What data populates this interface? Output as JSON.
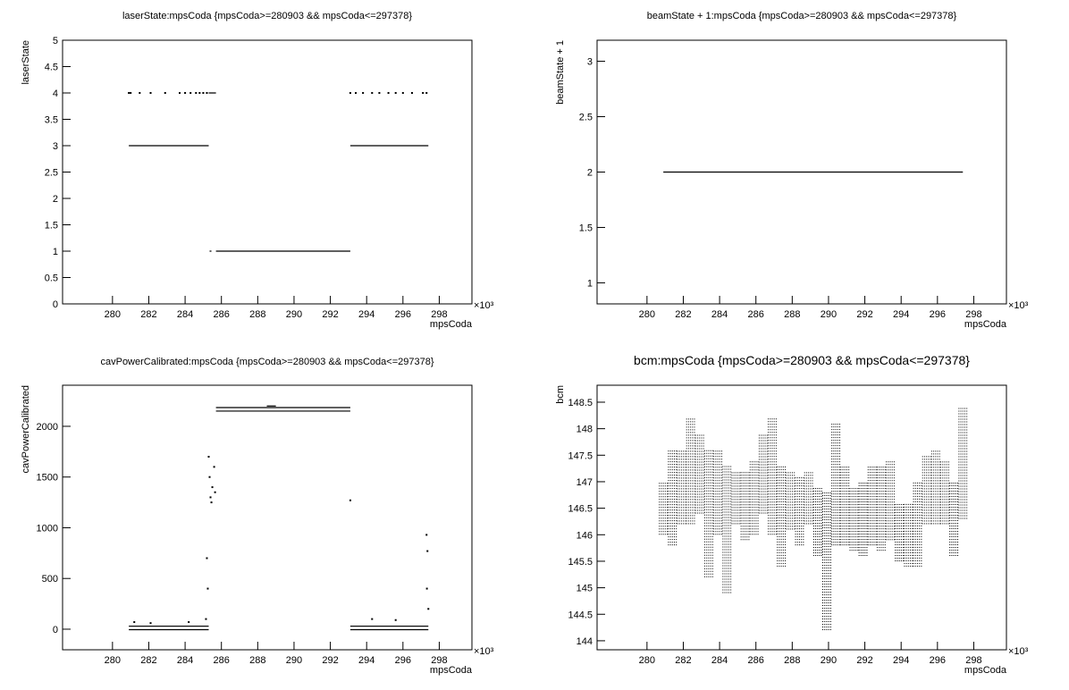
{
  "chart_data": [
    {
      "type": "scatter",
      "title": "laserState:mpsCoda {mpsCoda>=280903 && mpsCoda<=297378}",
      "xlabel": "mpsCoda",
      "ylabel": "laserState",
      "x_exponent": "×10³",
      "xlim": [
        277.25,
        299.8
      ],
      "xticks": [
        280,
        282,
        284,
        286,
        288,
        290,
        292,
        294,
        296,
        298
      ],
      "ylim": [
        0,
        5
      ],
      "yticks": [
        0,
        0.5,
        1,
        1.5,
        2,
        2.5,
        3,
        3.5,
        4,
        4.5,
        5
      ],
      "series": [
        {
          "draw": "line",
          "color": "#000000",
          "x": [
            280.9,
            285.3,
            null,
            285.35,
            285.45,
            null,
            285.7,
            293.1,
            null,
            293.1,
            297.4,
            null,
            285.3,
            285.7
          ],
          "values": [
            3,
            3,
            null,
            1,
            1,
            null,
            1,
            1,
            null,
            3,
            3,
            null,
            4,
            4
          ]
        },
        {
          "draw": "dots",
          "color": "#000000",
          "x": [
            280.9,
            281.0,
            281.5,
            282.1,
            282.9,
            283.7,
            284.0,
            284.3,
            284.6,
            284.8,
            285.0,
            285.2,
            293.1,
            293.4,
            293.8,
            294.3,
            294.7,
            295.2,
            295.6,
            296.0,
            296.5,
            297.1,
            297.3
          ],
          "values": [
            4,
            4,
            4,
            4,
            4,
            4,
            4,
            4,
            4,
            4,
            4,
            4,
            4,
            4,
            4,
            4,
            4,
            4,
            4,
            4,
            4,
            4,
            4
          ]
        }
      ]
    },
    {
      "type": "scatter",
      "title": "beamState + 1:mpsCoda {mpsCoda>=280903 && mpsCoda<=297378}",
      "xlabel": "mpsCoda",
      "ylabel": "beamState + 1",
      "x_exponent": "×10³",
      "xlim": [
        277.25,
        299.8
      ],
      "xticks": [
        280,
        282,
        284,
        286,
        288,
        290,
        292,
        294,
        296,
        298
      ],
      "ylim": [
        0.81,
        3.19
      ],
      "yticks": [
        1,
        1.5,
        2,
        2.5,
        3
      ],
      "series": [
        {
          "draw": "line",
          "color": "#000000",
          "x": [
            280.9,
            297.4
          ],
          "values": [
            2,
            2
          ]
        }
      ]
    },
    {
      "type": "scatter",
      "title": "cavPowerCalibrated:mpsCoda {mpsCoda>=280903 && mpsCoda<=297378}",
      "xlabel": "mpsCoda",
      "ylabel": "cavPowerCalibrated",
      "x_exponent": "×10³",
      "xlim": [
        277.25,
        299.8
      ],
      "xticks": [
        280,
        282,
        284,
        286,
        288,
        290,
        292,
        294,
        296,
        298
      ],
      "ylim": [
        -203,
        2405
      ],
      "yticks": [
        0,
        500,
        1000,
        1500,
        2000
      ],
      "series": [
        {
          "draw": "line",
          "color": "#000000",
          "x": [
            280.9,
            285.3,
            null,
            280.9,
            285.3,
            null,
            285.7,
            293.1,
            null,
            285.7,
            293.1,
            null,
            293.1,
            297.4,
            null,
            293.1,
            297.4,
            null,
            288.5,
            289.0
          ],
          "values": [
            30,
            30,
            null,
            -5,
            -5,
            null,
            2185,
            2185,
            null,
            2150,
            2150,
            null,
            30,
            30,
            null,
            -5,
            -5,
            null,
            2200,
            2200
          ]
        },
        {
          "draw": "dots",
          "color": "#000000",
          "x": [
            285.3,
            285.35,
            285.4,
            285.45,
            285.5,
            285.6,
            285.65,
            285.2,
            285.25,
            285.15,
            293.1,
            297.3,
            297.35,
            297.32,
            297.4,
            281.2,
            282.1,
            284.2,
            294.3,
            295.6
          ],
          "values": [
            1700,
            1500,
            1300,
            1250,
            1400,
            1600,
            1350,
            700,
            400,
            100,
            1270,
            930,
            770,
            400,
            200,
            70,
            60,
            70,
            100,
            90
          ]
        }
      ]
    },
    {
      "type": "ranges",
      "title": "bcm:mpsCoda {mpsCoda>=280903 && mpsCoda<=297378}",
      "xlabel": "mpsCoda",
      "ylabel": "bcm",
      "x_exponent": "×10³",
      "xlim": [
        277.25,
        299.8
      ],
      "xticks": [
        280,
        282,
        284,
        286,
        288,
        290,
        292,
        294,
        296,
        298
      ],
      "ylim": [
        143.83,
        148.82
      ],
      "yticks": [
        144,
        144.5,
        145,
        145.5,
        146,
        146.5,
        147,
        147.5,
        148,
        148.5
      ],
      "color": "#000000",
      "x": [
        280.9,
        281.4,
        281.9,
        282.4,
        282.9,
        283.4,
        283.9,
        284.4,
        284.9,
        285.4,
        285.9,
        286.4,
        286.9,
        287.4,
        287.9,
        288.4,
        288.9,
        289.4,
        289.9,
        290.4,
        290.9,
        291.4,
        291.9,
        292.4,
        292.9,
        293.4,
        293.9,
        294.4,
        294.9,
        295.4,
        295.9,
        296.4,
        296.9,
        297.4
      ],
      "low": [
        146.0,
        145.8,
        146.2,
        146.2,
        146.4,
        145.2,
        146.0,
        144.9,
        146.2,
        145.9,
        146.0,
        146.4,
        146.0,
        145.4,
        146.1,
        145.8,
        146.2,
        145.6,
        144.2,
        145.8,
        145.8,
        145.7,
        145.6,
        145.8,
        145.7,
        145.9,
        145.5,
        145.4,
        145.4,
        146.2,
        146.2,
        146.2,
        145.6,
        146.3
      ],
      "high": [
        147.0,
        147.6,
        147.6,
        148.2,
        147.9,
        147.6,
        147.6,
        147.3,
        147.2,
        147.2,
        147.4,
        147.9,
        148.2,
        147.3,
        147.2,
        147.1,
        147.2,
        146.9,
        146.8,
        148.1,
        147.3,
        146.9,
        147.0,
        147.3,
        147.3,
        147.4,
        146.6,
        146.6,
        147.0,
        147.5,
        147.6,
        147.4,
        147.0,
        148.4
      ]
    }
  ]
}
